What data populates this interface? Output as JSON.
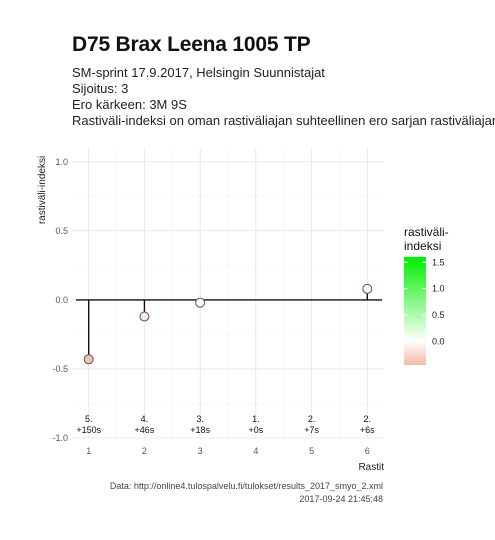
{
  "title": "D75 Brax Leena 1005 TP",
  "subtitle_lines": [
    "SM-sprint 17.9.2017, Helsingin Suunnistajat",
    "Sijoitus: 3",
    "Ero kärkeen: 3M 9S",
    "Rastiväli-indeksi on oman rastiväliajan suhteellinen ero sarjan rastiväliajan"
  ],
  "caption_lines": [
    "Data: http://online4.tulospalvelu.fi/tulokset/results_2017_smyo_2.xml",
    "2017-09-24 21:45:48"
  ],
  "chart_data": {
    "type": "lollipop",
    "xlabel": "Rastit",
    "ylabel": "rastiväli-indeksi",
    "xlim": [
      0.7,
      6.3
    ],
    "ylim": [
      -1.0,
      1.1
    ],
    "x_ticks": [
      1,
      2,
      3,
      4,
      5,
      6
    ],
    "y_ticks": [
      -1.0,
      -0.5,
      0.0,
      0.5,
      1.0
    ],
    "y_tick_labels": [
      "-1.0",
      "-0.5",
      "0.0",
      "0.5",
      "1.0"
    ],
    "points": [
      {
        "x": 1,
        "y": -0.43,
        "color": "#f4c1b3"
      },
      {
        "x": 2,
        "y": -0.12,
        "color": "#fbe9e4"
      },
      {
        "x": 3,
        "y": -0.02,
        "color": "#ffffff"
      },
      {
        "x": 6,
        "y": 0.08,
        "color": "#f1fbf1"
      }
    ],
    "annotations": [
      {
        "x": 1,
        "rank": "5.",
        "diff": "+150s"
      },
      {
        "x": 2,
        "rank": "4.",
        "diff": "+46s"
      },
      {
        "x": 3,
        "rank": "3.",
        "diff": "+18s"
      },
      {
        "x": 4,
        "rank": "1.",
        "diff": "+0s"
      },
      {
        "x": 5,
        "rank": "2.",
        "diff": "+7s"
      },
      {
        "x": 6,
        "rank": "2.",
        "diff": "+6s"
      }
    ],
    "annotation_y": -0.9,
    "legend": {
      "title_lines": [
        "rastiväli-",
        "indeksi"
      ],
      "range": [
        -0.45,
        1.6
      ],
      "ticks": [
        1.5,
        1.0,
        0.5,
        0.0
      ],
      "tick_labels": [
        "1.5",
        "1.0",
        "0.5",
        "0.0"
      ],
      "color_high": "#00ee00",
      "color_mid": "#ffffff",
      "color_low": "#f6b8a6"
    },
    "grid": true
  }
}
